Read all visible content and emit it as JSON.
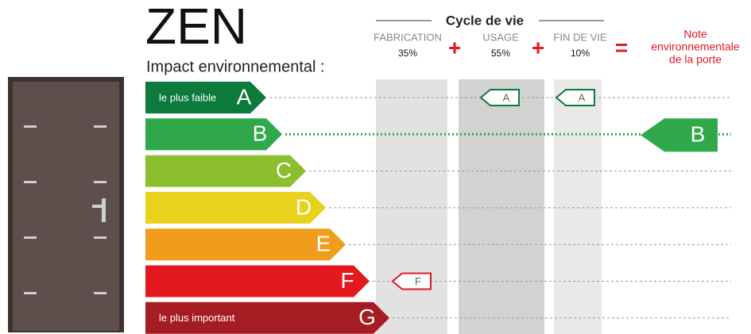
{
  "header": {
    "title": "ZEN",
    "subtitle": "Impact environnemental :",
    "cycle_title": "Cycle de vie"
  },
  "phases": [
    {
      "name": "FABRICATION",
      "share": "35%",
      "rating": "F"
    },
    {
      "name": "USAGE",
      "share": "55%",
      "rating": "A"
    },
    {
      "name": "FIN DE VIE",
      "share": "10%",
      "rating": "A"
    }
  ],
  "operators": [
    "+",
    "+",
    "="
  ],
  "note": {
    "label": [
      "Note",
      "environnementale",
      "de la porte"
    ],
    "rating": "B"
  },
  "scale": [
    {
      "grade": "A",
      "caption": "le plus faible",
      "color": "#0b7a3b"
    },
    {
      "grade": "B",
      "color": "#2fa84a"
    },
    {
      "grade": "C",
      "color": "#8bbf2e"
    },
    {
      "grade": "D",
      "color": "#e8d21c"
    },
    {
      "grade": "E",
      "color": "#ef9d1a"
    },
    {
      "grade": "F",
      "color": "#e3191f"
    },
    {
      "grade": "G",
      "caption": "le plus important",
      "color": "#a51d22"
    }
  ]
}
